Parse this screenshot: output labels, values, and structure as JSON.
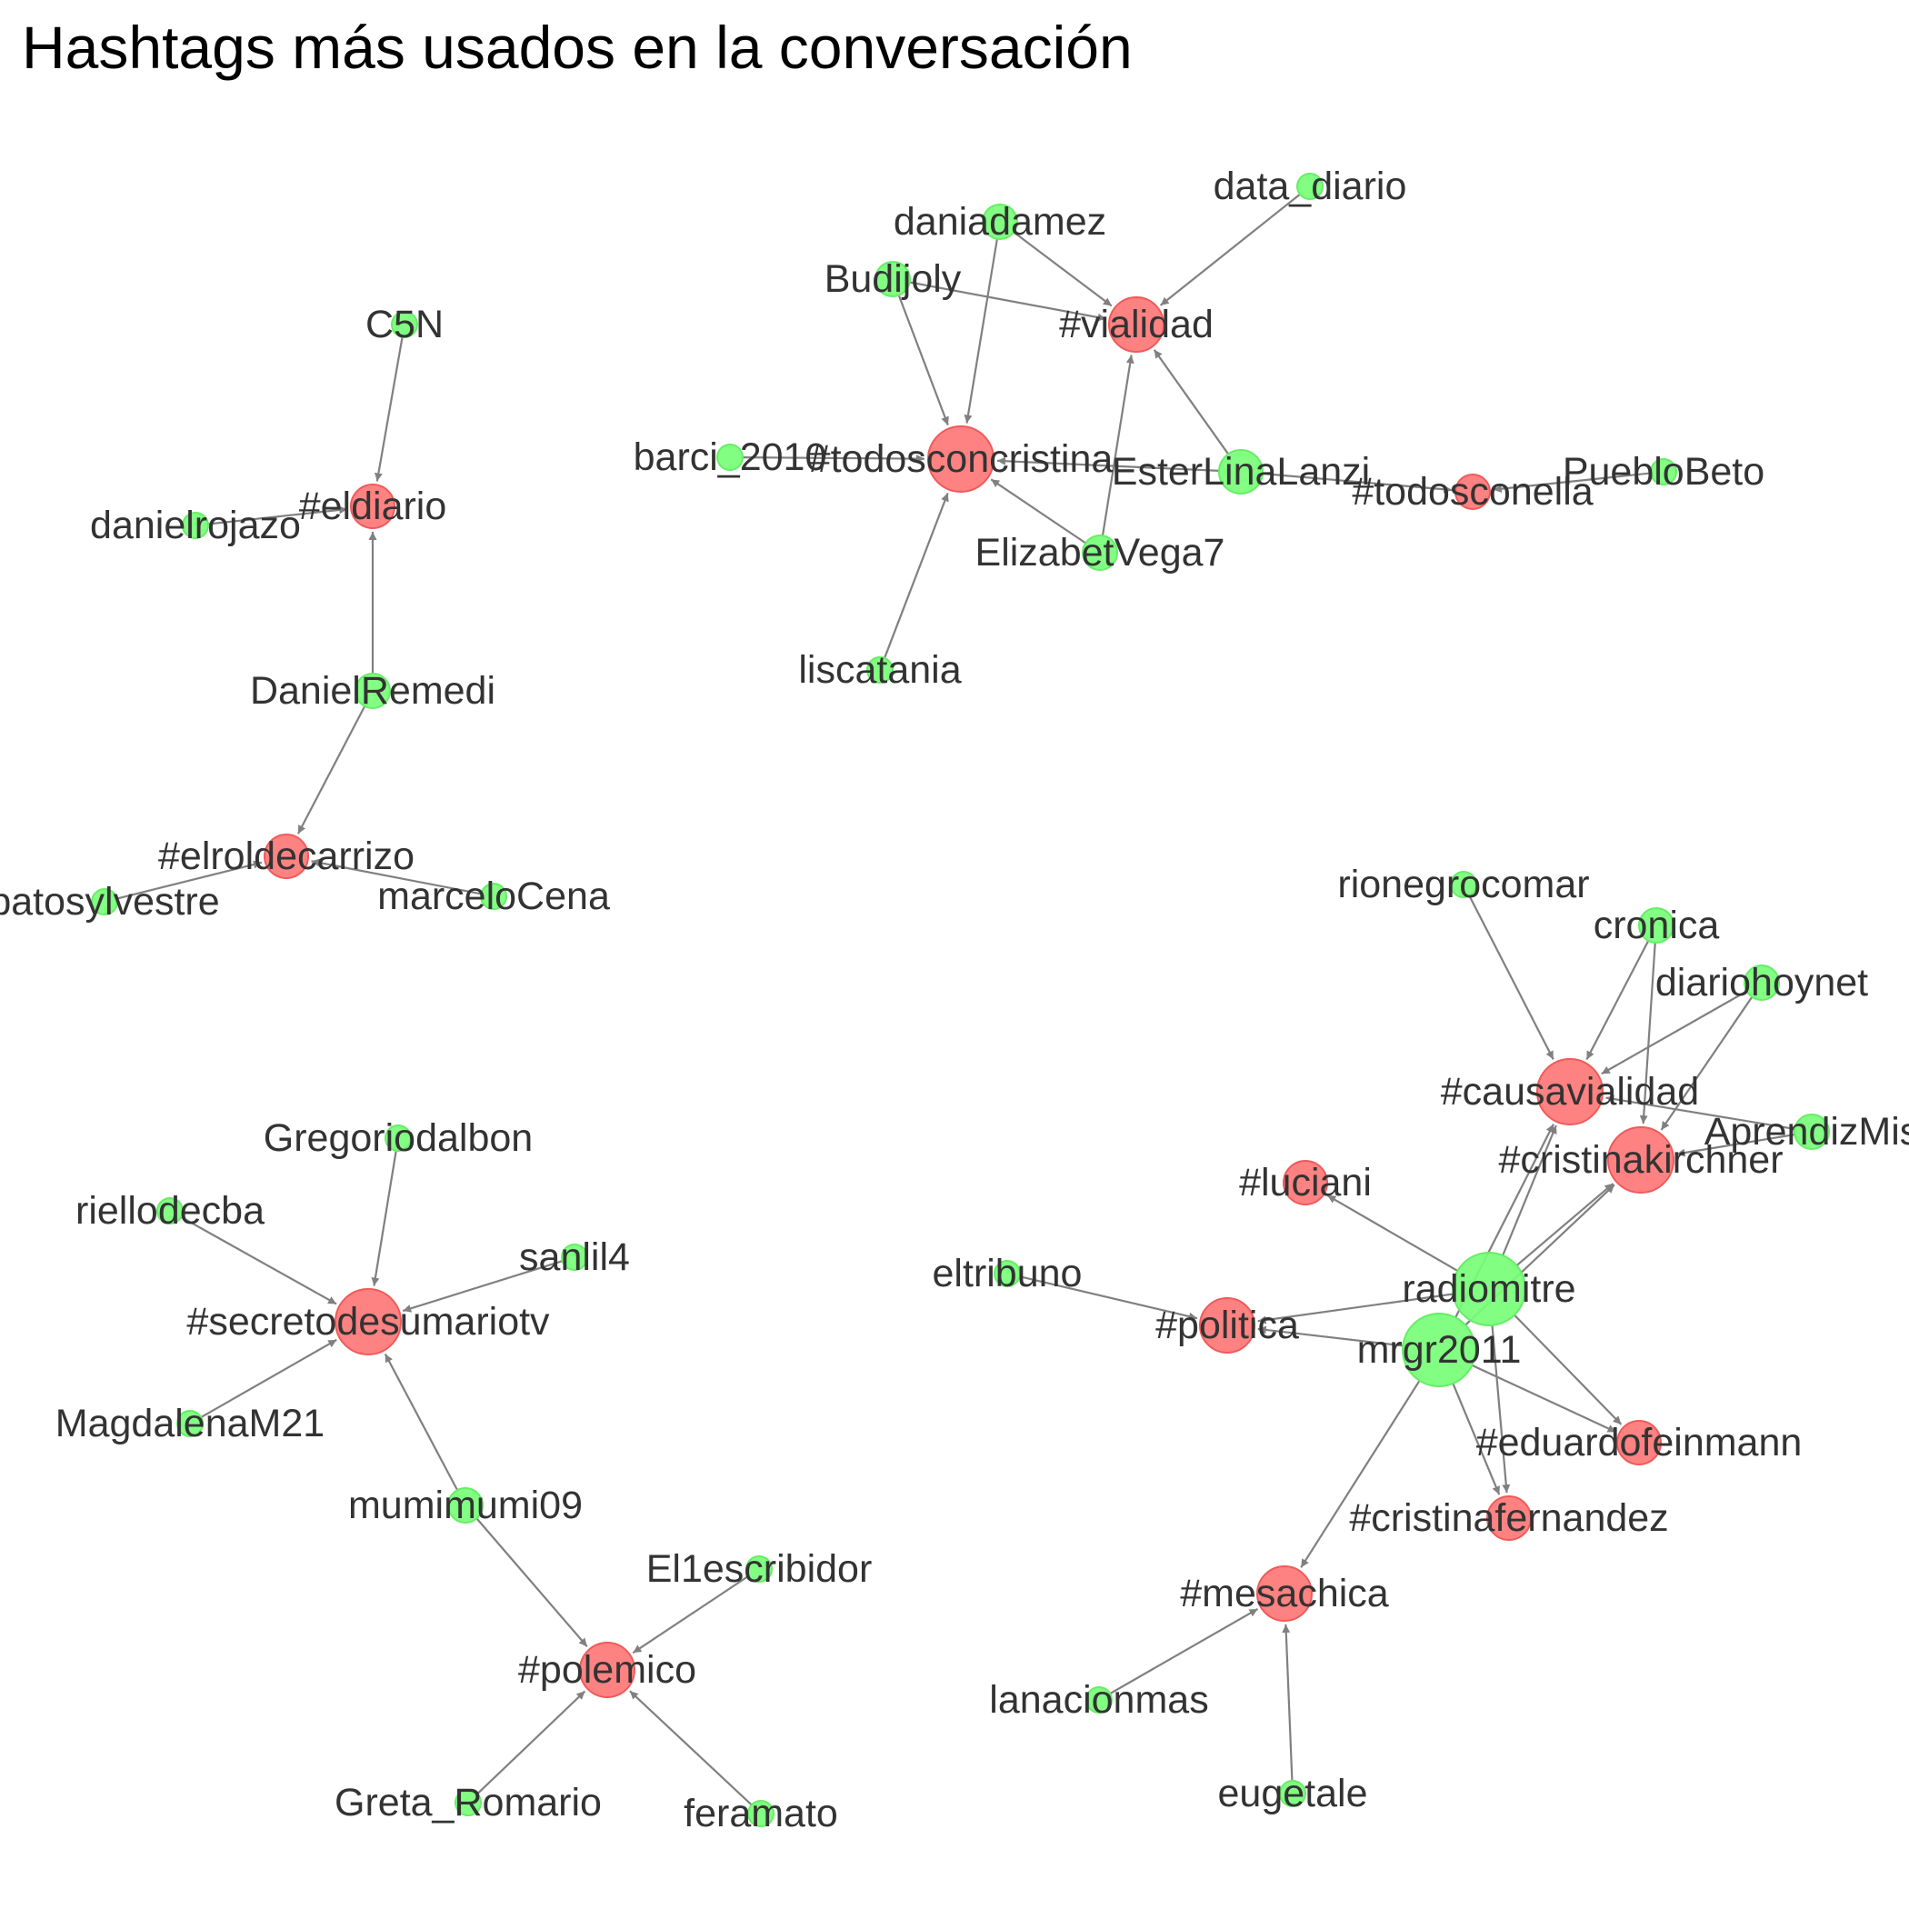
{
  "title": "Hashtags más usados en la conversación",
  "colors": {
    "user": "#77ff77",
    "hashtag": "#ff7777",
    "edge": "#808080",
    "text": "#333333"
  },
  "nodes": [
    {
      "id": "C5N",
      "type": "user",
      "weight": 1
    },
    {
      "id": "#eldiario",
      "type": "hashtag",
      "weight": 3
    },
    {
      "id": "danielrojazo",
      "type": "user",
      "weight": 1
    },
    {
      "id": "DanielRemedi",
      "type": "user",
      "weight": 2
    },
    {
      "id": "#elroldecarrizo",
      "type": "hashtag",
      "weight": 3
    },
    {
      "id": "patosylvestre",
      "type": "user",
      "weight": 1
    },
    {
      "id": "marceloCena",
      "type": "user",
      "weight": 1
    },
    {
      "id": "daniadamez",
      "type": "user",
      "weight": 2
    },
    {
      "id": "data_diario",
      "type": "user",
      "weight": 1
    },
    {
      "id": "Budijoly",
      "type": "user",
      "weight": 2
    },
    {
      "id": "#vialidad",
      "type": "hashtag",
      "weight": 4
    },
    {
      "id": "barci_2010",
      "type": "user",
      "weight": 1
    },
    {
      "id": "#todosconcristina",
      "type": "hashtag",
      "weight": 5
    },
    {
      "id": "EsterLinaLanzi",
      "type": "user",
      "weight": 3
    },
    {
      "id": "#todosconella",
      "type": "hashtag",
      "weight": 2
    },
    {
      "id": "PuebloBeto",
      "type": "user",
      "weight": 1
    },
    {
      "id": "ElizabetVega7",
      "type": "user",
      "weight": 2
    },
    {
      "id": "liscatania",
      "type": "user",
      "weight": 1
    },
    {
      "id": "Gregoriodalbon",
      "type": "user",
      "weight": 1
    },
    {
      "id": "riellodecba",
      "type": "user",
      "weight": 1
    },
    {
      "id": "sanlil4",
      "type": "user",
      "weight": 1
    },
    {
      "id": "#secretodesumariotv",
      "type": "hashtag",
      "weight": 5
    },
    {
      "id": "MagdalenaM21",
      "type": "user",
      "weight": 1
    },
    {
      "id": "mumimumi09",
      "type": "user",
      "weight": 2
    },
    {
      "id": "El1escribidor",
      "type": "user",
      "weight": 1
    },
    {
      "id": "#polemico",
      "type": "hashtag",
      "weight": 4
    },
    {
      "id": "Greta_Romario",
      "type": "user",
      "weight": 1
    },
    {
      "id": "feramato",
      "type": "user",
      "weight": 1
    },
    {
      "id": "rionegrocomar",
      "type": "user",
      "weight": 1
    },
    {
      "id": "cronica",
      "type": "user",
      "weight": 2
    },
    {
      "id": "diariohoynet",
      "type": "user",
      "weight": 2
    },
    {
      "id": "#causavialidad",
      "type": "hashtag",
      "weight": 5
    },
    {
      "id": "AprendizMis",
      "type": "user",
      "weight": 2
    },
    {
      "id": "#cristinakirchner",
      "type": "hashtag",
      "weight": 5
    },
    {
      "id": "#luciani",
      "type": "hashtag",
      "weight": 3
    },
    {
      "id": "eltribuno",
      "type": "user",
      "weight": 1
    },
    {
      "id": "radiomitre",
      "type": "user",
      "weight": 6
    },
    {
      "id": "#politica",
      "type": "hashtag",
      "weight": 4
    },
    {
      "id": "mrgr2011",
      "type": "user",
      "weight": 6
    },
    {
      "id": "#eduardofeinmann",
      "type": "hashtag",
      "weight": 3
    },
    {
      "id": "#cristinafernandez",
      "type": "hashtag",
      "weight": 3
    },
    {
      "id": "#mesachica",
      "type": "hashtag",
      "weight": 4
    },
    {
      "id": "lanacionmas",
      "type": "user",
      "weight": 1
    },
    {
      "id": "eugetale",
      "type": "user",
      "weight": 1
    }
  ],
  "edges": [
    [
      "C5N",
      "#eldiario"
    ],
    [
      "danielrojazo",
      "#eldiario"
    ],
    [
      "DanielRemedi",
      "#eldiario"
    ],
    [
      "DanielRemedi",
      "#elroldecarrizo"
    ],
    [
      "patosylvestre",
      "#elroldecarrizo"
    ],
    [
      "marceloCena",
      "#elroldecarrizo"
    ],
    [
      "daniadamez",
      "#vialidad"
    ],
    [
      "daniadamez",
      "#todosconcristina"
    ],
    [
      "data_diario",
      "#vialidad"
    ],
    [
      "Budijoly",
      "#vialidad"
    ],
    [
      "Budijoly",
      "#todosconcristina"
    ],
    [
      "barci_2010",
      "#todosconcristina"
    ],
    [
      "EsterLinaLanzi",
      "#vialidad"
    ],
    [
      "EsterLinaLanzi",
      "#todosconcristina"
    ],
    [
      "EsterLinaLanzi",
      "#todosconella"
    ],
    [
      "PuebloBeto",
      "#todosconella"
    ],
    [
      "ElizabetVega7",
      "#vialidad"
    ],
    [
      "ElizabetVega7",
      "#todosconcristina"
    ],
    [
      "liscatania",
      "#todosconcristina"
    ],
    [
      "Gregoriodalbon",
      "#secretodesumariotv"
    ],
    [
      "riellodecba",
      "#secretodesumariotv"
    ],
    [
      "sanlil4",
      "#secretodesumariotv"
    ],
    [
      "MagdalenaM21",
      "#secretodesumariotv"
    ],
    [
      "mumimumi09",
      "#secretodesumariotv"
    ],
    [
      "mumimumi09",
      "#polemico"
    ],
    [
      "El1escribidor",
      "#polemico"
    ],
    [
      "Greta_Romario",
      "#polemico"
    ],
    [
      "feramato",
      "#polemico"
    ],
    [
      "rionegrocomar",
      "#causavialidad"
    ],
    [
      "cronica",
      "#causavialidad"
    ],
    [
      "cronica",
      "#cristinakirchner"
    ],
    [
      "diariohoynet",
      "#causavialidad"
    ],
    [
      "diariohoynet",
      "#cristinakirchner"
    ],
    [
      "AprendizMis",
      "#causavialidad"
    ],
    [
      "AprendizMis",
      "#cristinakirchner"
    ],
    [
      "radiomitre",
      "#causavialidad"
    ],
    [
      "radiomitre",
      "#cristinakirchner"
    ],
    [
      "radiomitre",
      "#luciani"
    ],
    [
      "radiomitre",
      "#politica"
    ],
    [
      "radiomitre",
      "#eduardofeinmann"
    ],
    [
      "radiomitre",
      "#cristinafernandez"
    ],
    [
      "mrgr2011",
      "#causavialidad"
    ],
    [
      "mrgr2011",
      "#cristinakirchner"
    ],
    [
      "mrgr2011",
      "#politica"
    ],
    [
      "mrgr2011",
      "#eduardofeinmann"
    ],
    [
      "mrgr2011",
      "#cristinafernandez"
    ],
    [
      "mrgr2011",
      "#mesachica"
    ],
    [
      "eltribuno",
      "#politica"
    ],
    [
      "lanacionmas",
      "#mesachica"
    ],
    [
      "eugetale",
      "#mesachica"
    ]
  ]
}
